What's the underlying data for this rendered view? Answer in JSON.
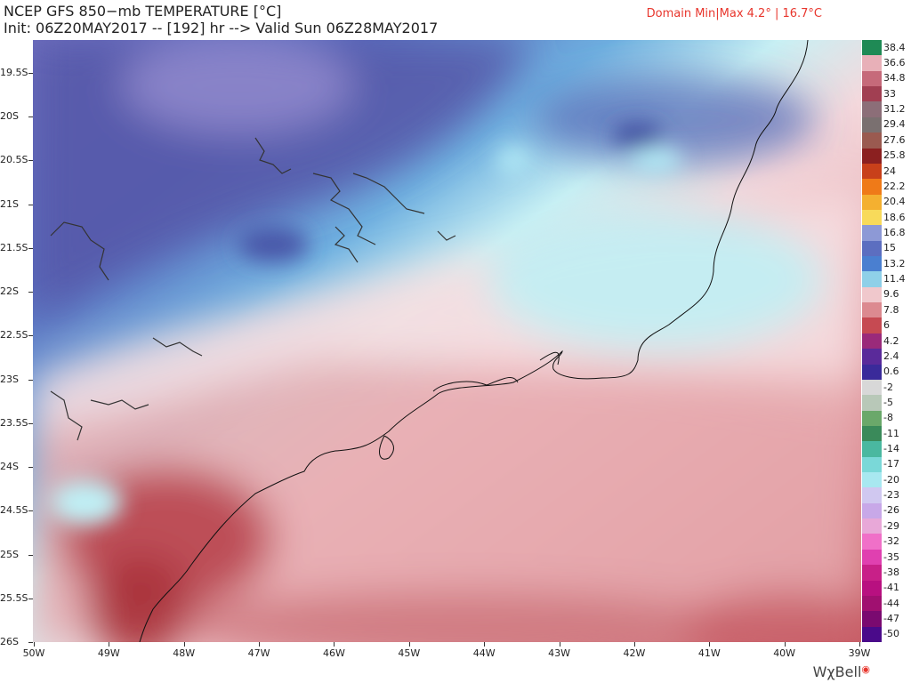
{
  "title": {
    "line1": "NCEP GFS 850−mb TEMPERATURE [°C]",
    "line2": "Init: 06Z20MAY2017 -- [192] hr --> Valid Sun 06Z28MAY2017"
  },
  "domain_label": "Domain Min|Max 4.2° | 16.7°C",
  "domain_min": 4.2,
  "domain_max": 16.7,
  "latitudes": [
    "19.5S",
    "20S",
    "20.5S",
    "21S",
    "21.5S",
    "22S",
    "22.5S",
    "23S",
    "23.5S",
    "24S",
    "24.5S",
    "25S",
    "25.5S",
    "26S"
  ],
  "longitudes": [
    "50W",
    "49W",
    "48W",
    "47W",
    "46W",
    "45W",
    "44W",
    "43W",
    "42W",
    "41W",
    "40W",
    "39W"
  ],
  "colorbar": {
    "labels": [
      "38.4",
      "36.6",
      "34.8",
      "33",
      "31.2",
      "29.4",
      "27.6",
      "25.8",
      "24",
      "22.2",
      "20.4",
      "18.6",
      "16.8",
      "15",
      "13.2",
      "11.4",
      "9.6",
      "7.8",
      "6",
      "4.2",
      "2.4",
      "0.6",
      "-2",
      "-5",
      "-8",
      "-11",
      "-14",
      "-17",
      "-20",
      "-23",
      "-26",
      "-29",
      "-32",
      "-35",
      "-38",
      "-41",
      "-44",
      "-47",
      "-50"
    ],
    "colors": [
      "#1f8a55",
      "#e8b0b8",
      "#c66a7a",
      "#a13f52",
      "#8c6e78",
      "#7a7070",
      "#9a5a50",
      "#8b2020",
      "#c8401a",
      "#ef7a18",
      "#f4b030",
      "#f8da5a",
      "#8d99d6",
      "#5c6ec0",
      "#4a7fd0",
      "#8fd0e8",
      "#f0c8cc",
      "#dc8a90",
      "#c64a52",
      "#9a2a7a",
      "#5a2a9a",
      "#3a2a9a",
      "#d8d8d8",
      "#b8c8b8",
      "#6aa86a",
      "#3a8a5a",
      "#4ab8a0",
      "#7ad8d8",
      "#a8e8f0",
      "#d0c8f0",
      "#c8a8e8",
      "#e8a8d8",
      "#f070c8",
      "#e040b0",
      "#c82088",
      "#b81080",
      "#a01070",
      "#7a0a70",
      "#4a0a8a"
    ]
  },
  "brand": "WχBell"
}
